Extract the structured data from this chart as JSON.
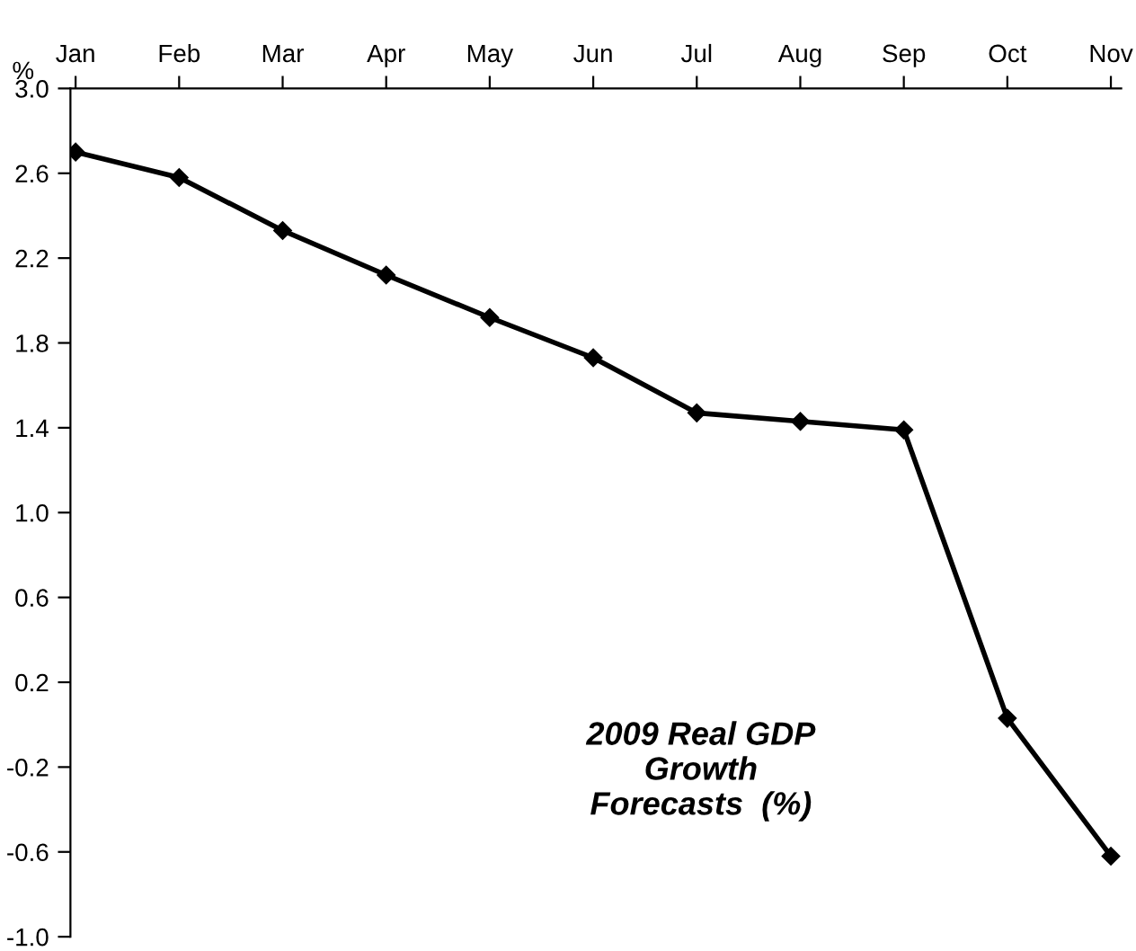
{
  "chart_data": {
    "type": "line",
    "ylabel": "%",
    "categories": [
      "Jan",
      "Feb",
      "Mar",
      "Apr",
      "May",
      "Jun",
      "Jul",
      "Aug",
      "Sep",
      "Oct",
      "Nov"
    ],
    "series": [
      {
        "color": "#000000",
        "values": [
          2.7,
          2.58,
          2.33,
          2.12,
          1.92,
          1.73,
          1.47,
          1.43,
          1.39,
          0.03,
          -0.62
        ]
      }
    ],
    "ylim": [
      -1.0,
      3.0
    ],
    "yticks": [
      {
        "value": -1.0,
        "label": "-1.0"
      },
      {
        "value": -0.6,
        "label": "-0.6"
      },
      {
        "value": -0.2,
        "label": "-0.2"
      },
      {
        "value": 0.2,
        "label": "0.2"
      },
      {
        "value": 0.6,
        "label": "0.6"
      },
      {
        "value": 1.0,
        "label": "1.0"
      },
      {
        "value": 1.4,
        "label": "1.4"
      },
      {
        "value": 1.8,
        "label": "1.8"
      },
      {
        "value": 2.2,
        "label": "2.2"
      },
      {
        "value": 2.6,
        "label": "2.6"
      },
      {
        "value": 3.0,
        "label": "3.0"
      }
    ],
    "marker": "diamond",
    "line_style": "solid",
    "grid": false,
    "legend": false,
    "annotations": [
      "2009 Real GDP\nGrowth\nForecasts  (%)"
    ]
  }
}
